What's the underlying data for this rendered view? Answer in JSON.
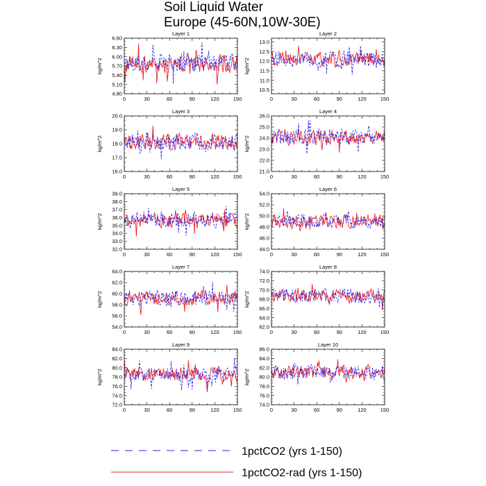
{
  "title": {
    "line1": "Soil Liquid Water",
    "line2": "Europe (45-60N,10W-30E)"
  },
  "legend": [
    {
      "label": "1pctCO2 (yrs 1-150)",
      "color": "#2222ee",
      "dashed": true
    },
    {
      "label": "1pctCO2-rad (yrs 1-150)",
      "color": "#ee2222",
      "dashed": false
    }
  ],
  "chart_data": [
    {
      "type": "line",
      "title": "Layer 1",
      "ylabel": "kg/m^2",
      "xlim": [
        0,
        150
      ],
      "xticks": [
        0,
        30,
        60,
        90,
        120,
        150
      ],
      "ylim": [
        4.8,
        6.6
      ],
      "yticks": [
        4.8,
        5.1,
        5.4,
        5.7,
        6.0,
        6.3,
        6.6
      ],
      "ytick_labels": [
        "4.80",
        "5.10",
        "5.40",
        "5.70",
        "6.00",
        "6.30",
        "6.60"
      ],
      "series_mean": 5.8,
      "series_amp": 0.35
    },
    {
      "type": "line",
      "title": "Layer 2",
      "ylabel": "kg/m^2",
      "xlim": [
        0,
        150
      ],
      "xticks": [
        0,
        30,
        60,
        90,
        120,
        150
      ],
      "ylim": [
        10.3,
        13.2
      ],
      "yticks": [
        10.5,
        11.0,
        11.5,
        12.0,
        12.5,
        13.0
      ],
      "ytick_labels": [
        "10.5",
        "11.0",
        "11.5",
        "12.0",
        "12.5",
        "13.0"
      ],
      "series_mean": 12.1,
      "series_amp": 0.45
    },
    {
      "type": "line",
      "title": "Layer 3",
      "ylabel": "kg/m^2",
      "xlim": [
        0,
        150
      ],
      "xticks": [
        0,
        30,
        60,
        90,
        120,
        150
      ],
      "ylim": [
        16.0,
        20.0
      ],
      "yticks": [
        16.0,
        17.0,
        18.0,
        19.0,
        20.0
      ],
      "ytick_labels": [
        "16.0",
        "17.0",
        "18.0",
        "19.0",
        "20.0"
      ],
      "series_mean": 18.1,
      "series_amp": 0.7
    },
    {
      "type": "line",
      "title": "Layer 4",
      "ylabel": "kg/m^2",
      "xlim": [
        0,
        150
      ],
      "xticks": [
        0,
        30,
        60,
        90,
        120,
        150
      ],
      "ylim": [
        21.0,
        26.0
      ],
      "yticks": [
        21.0,
        22.0,
        23.0,
        24.0,
        25.0,
        26.0
      ],
      "ytick_labels": [
        "21.0",
        "22.0",
        "23.0",
        "24.0",
        "25.0",
        "26.0"
      ],
      "series_mean": 24.1,
      "series_amp": 0.8
    },
    {
      "type": "line",
      "title": "Layer 5",
      "ylabel": "kg/m^2",
      "xlim": [
        0,
        150
      ],
      "xticks": [
        0,
        30,
        60,
        90,
        120,
        150
      ],
      "ylim": [
        32.0,
        39.0
      ],
      "yticks": [
        32.0,
        33.0,
        34.0,
        35.0,
        36.0,
        37.0,
        38.0,
        39.0
      ],
      "ytick_labels": [
        "32.0",
        "33.0",
        "34.0",
        "35.0",
        "36.0",
        "37.0",
        "38.0",
        "39.0"
      ],
      "series_mean": 35.7,
      "series_amp": 1.1
    },
    {
      "type": "line",
      "title": "Layer 6",
      "ylabel": "kg/m^2",
      "xlim": [
        0,
        150
      ],
      "xticks": [
        0,
        30,
        60,
        90,
        120,
        150
      ],
      "ylim": [
        44.0,
        54.0
      ],
      "yticks": [
        44.0,
        46.0,
        48.0,
        50.0,
        52.0,
        54.0
      ],
      "ytick_labels": [
        "44.0",
        "46.0",
        "48.0",
        "50.0",
        "52.0",
        "54.0"
      ],
      "series_mean": 49.0,
      "series_amp": 1.4
    },
    {
      "type": "line",
      "title": "Layer 7",
      "ylabel": "kg/m^2",
      "xlim": [
        0,
        150
      ],
      "xticks": [
        0,
        30,
        60,
        90,
        120,
        150
      ],
      "ylim": [
        54.0,
        64.0
      ],
      "yticks": [
        54.0,
        56.0,
        58.0,
        60.0,
        62.0,
        64.0
      ],
      "ytick_labels": [
        "54.0",
        "56.0",
        "58.0",
        "60.0",
        "62.0",
        "64.0"
      ],
      "series_mean": 59.2,
      "series_amp": 1.5
    },
    {
      "type": "line",
      "title": "Layer 8",
      "ylabel": "kg/m^2",
      "xlim": [
        0,
        150
      ],
      "xticks": [
        0,
        30,
        60,
        90,
        120,
        150
      ],
      "ylim": [
        62.0,
        74.0
      ],
      "yticks": [
        62.0,
        64.0,
        66.0,
        68.0,
        70.0,
        72.0,
        74.0
      ],
      "ytick_labels": [
        "62.0",
        "64.0",
        "66.0",
        "68.0",
        "70.0",
        "72.0",
        "74.0"
      ],
      "series_mean": 68.6,
      "series_amp": 1.8
    },
    {
      "type": "line",
      "title": "Layer 9",
      "ylabel": "kg/m^2",
      "xlim": [
        0,
        150
      ],
      "xticks": [
        0,
        30,
        60,
        90,
        120,
        150
      ],
      "ylim": [
        72.0,
        84.0
      ],
      "yticks": [
        72.0,
        74.0,
        76.0,
        78.0,
        80.0,
        82.0,
        84.0
      ],
      "ytick_labels": [
        "72.0",
        "74.0",
        "76.0",
        "78.0",
        "80.0",
        "82.0",
        "84.0"
      ],
      "series_mean": 78.6,
      "series_amp": 1.8
    },
    {
      "type": "line",
      "title": "Layer 10",
      "ylabel": "kg/m^2",
      "xlim": [
        0,
        150
      ],
      "xticks": [
        0,
        30,
        60,
        90,
        120,
        150
      ],
      "ylim": [
        74.0,
        86.0
      ],
      "yticks": [
        74.0,
        76.0,
        78.0,
        80.0,
        82.0,
        84.0,
        86.0
      ],
      "ytick_labels": [
        "74.0",
        "76.0",
        "78.0",
        "80.0",
        "82.0",
        "84.0",
        "86.0"
      ],
      "series_mean": 81.0,
      "series_amp": 1.8
    }
  ]
}
